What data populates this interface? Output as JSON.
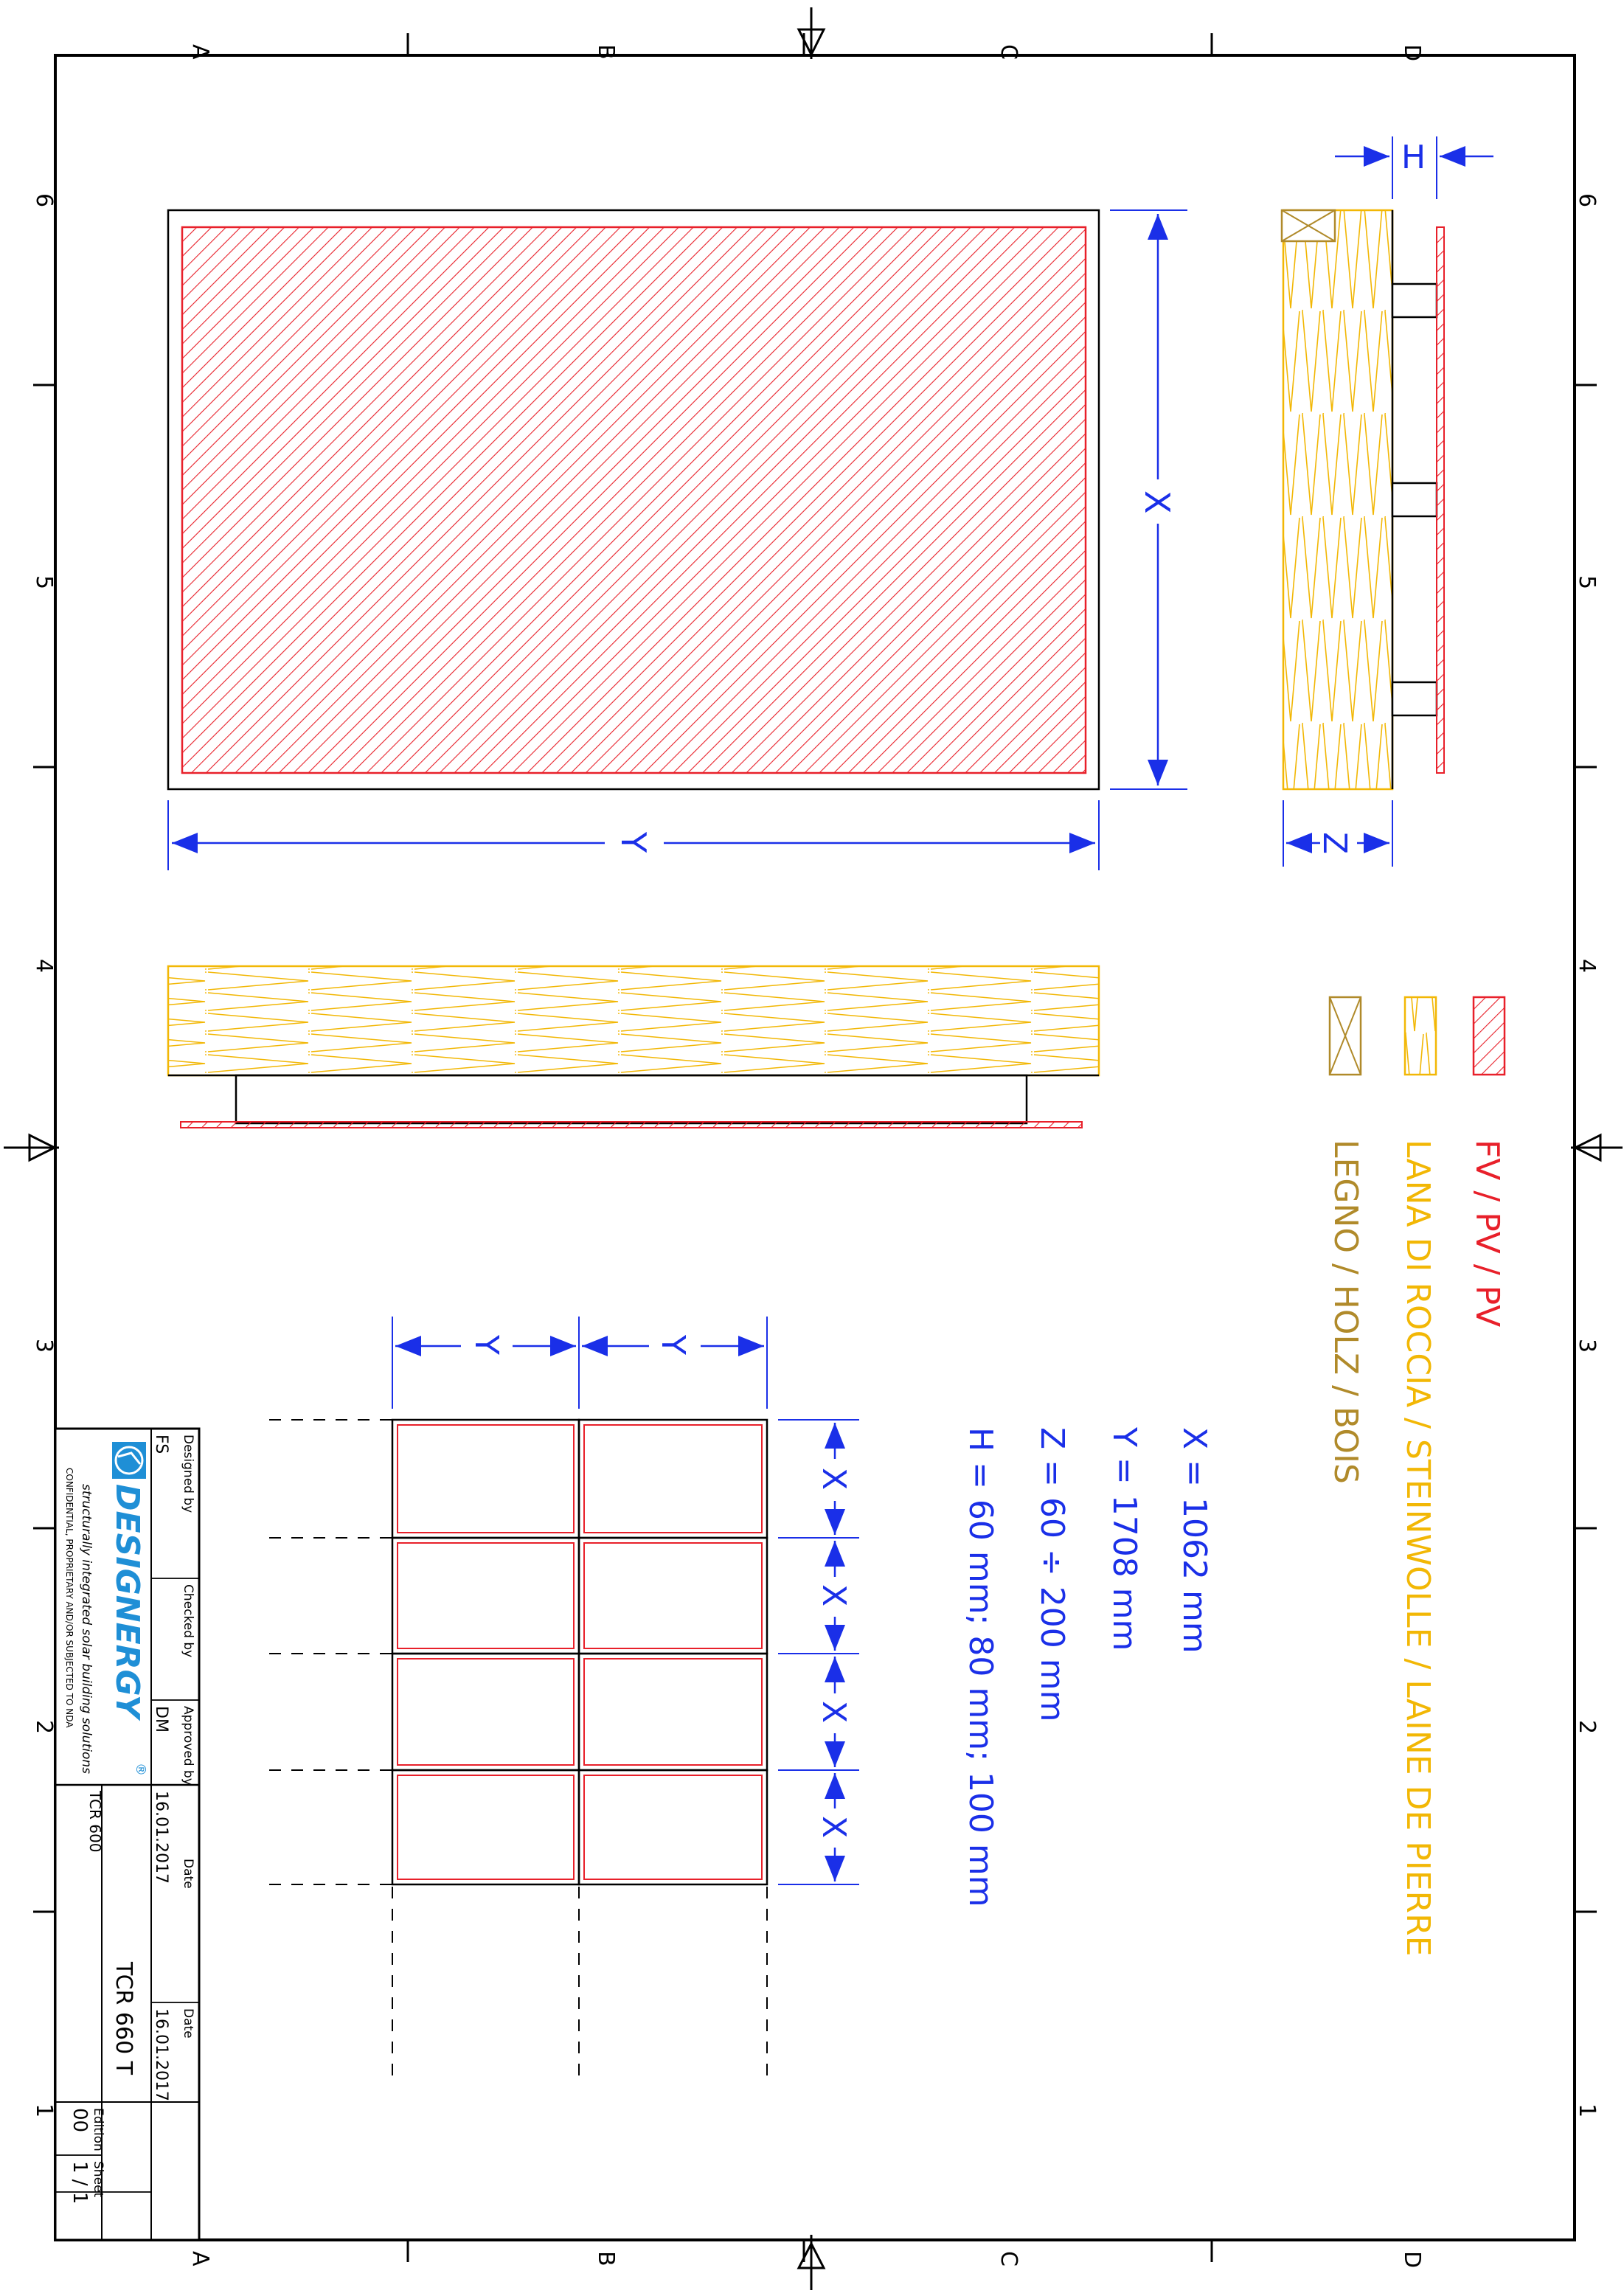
{
  "frame": {
    "zones_letters": [
      "A",
      "B",
      "C",
      "D"
    ],
    "zones_numbers": [
      "6",
      "5",
      "4",
      "3",
      "2",
      "1"
    ]
  },
  "dimensions": {
    "x_label": "X",
    "y_label": "Y",
    "z_label": "Z",
    "h_label": "H"
  },
  "legend": {
    "pv": "FV / PV / PV",
    "wool": "LANA DI ROCCIA / STEINWOLLE / LAINE DE PIERRE",
    "wood": "LEGNO / HOLZ / BOIS"
  },
  "values": {
    "x": "X = 1062 mm",
    "y": "Y = 1708 mm",
    "z": "Z = 60 ÷ 200 mm",
    "h": "H = 60 mm; 80 mm; 100 mm"
  },
  "titleblock": {
    "designed_by_label": "Designed by",
    "designed_by": "FS",
    "checked_by_label": "Checked by",
    "checked_by": "",
    "approved_by_label": "Approved by",
    "approved_by": "DM",
    "date_label": "Date",
    "date": "16.01.2017",
    "date2_label": "Date",
    "date2": "16.01.2017",
    "part_code": "TCR 600",
    "drawing_title": "TCR 660 T",
    "edition_label": "Edition",
    "edition": "00",
    "sheet_label": "Sheet",
    "sheet": "1 / 1",
    "brand": "DESIGNERGY",
    "brand_registered": "®",
    "tagline": "structurally integrated solar building solutions",
    "confidential": "CONFIDENTIAL, PROPRIETARY AND/OR SUBJECTED TO NDA"
  },
  "colors": {
    "pv_red": "#e8202a",
    "wool_yellow": "#f2b705",
    "wood_brown": "#b08a2a",
    "dimension_blue": "#1a2fe8",
    "line_black": "#000000"
  }
}
